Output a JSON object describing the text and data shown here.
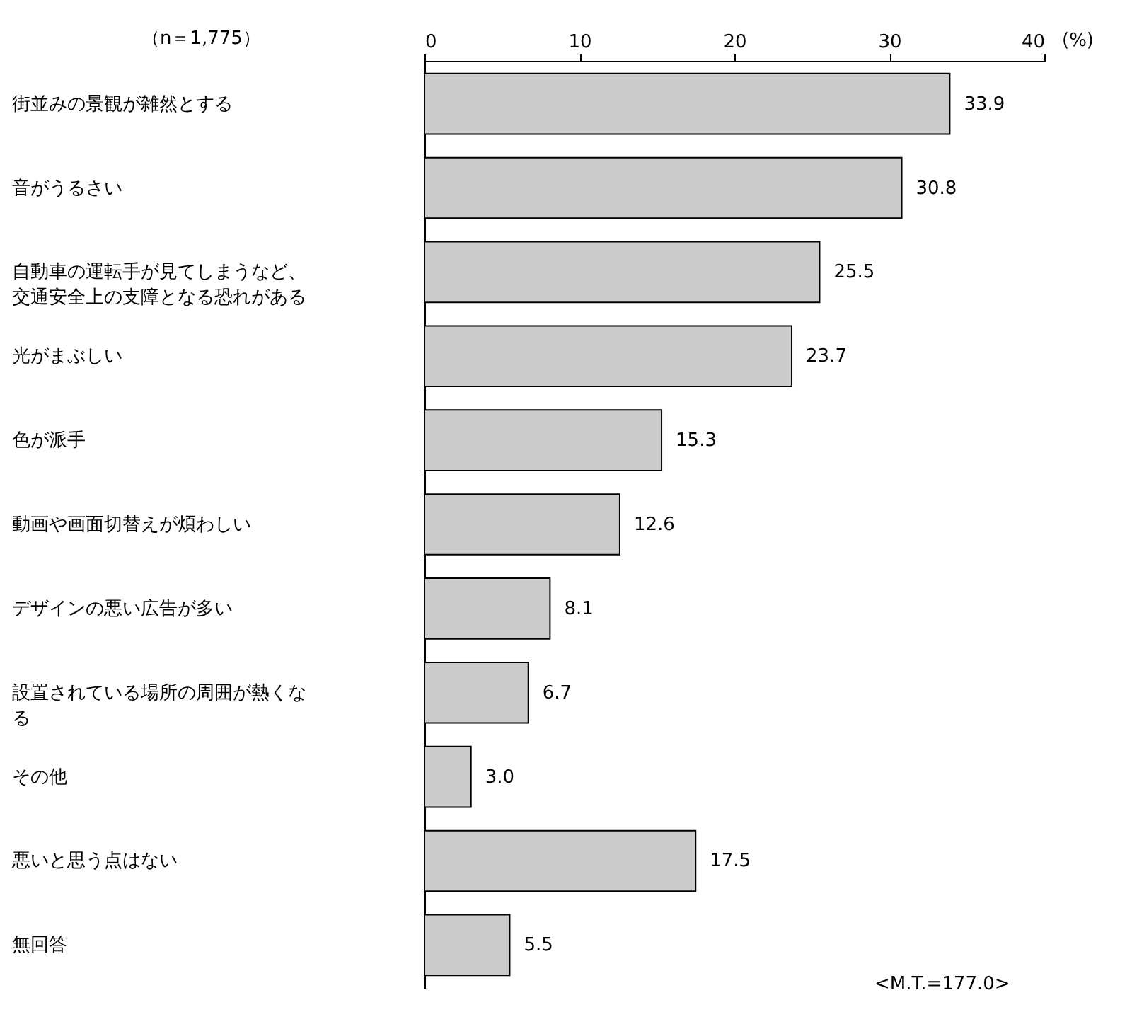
{
  "chart_data": {
    "type": "bar",
    "orientation": "horizontal",
    "xlabel": "(%)",
    "categories": [
      "街並みの景観が雑然とする",
      "音がうるさい",
      "自動車の運転手が見てしまうなど、交通安全上の支障となる恐れがある",
      "光がまぶしい",
      "色が派手",
      "動画や画面切替えが煩わしい",
      "デザインの悪い広告が多い",
      "設置されている場所の周囲が熱くなる",
      "その他",
      "悪いと思う点はない",
      "無回答"
    ],
    "values": [
      33.9,
      30.8,
      25.5,
      23.7,
      15.3,
      12.6,
      8.1,
      6.7,
      3.0,
      17.5,
      5.5
    ],
    "value_labels": [
      "33.9",
      "30.8",
      "25.5",
      "23.7",
      "15.3",
      "12.6",
      "8.1",
      "6.7",
      "3.0",
      "17.5",
      "5.5"
    ],
    "color": "#cccccc",
    "xlim": [
      0,
      40
    ],
    "xticks": [
      0,
      10,
      20,
      30,
      40
    ],
    "annotations": [
      "（n＝1,775）",
      "<M.T.=177.0>"
    ]
  }
}
